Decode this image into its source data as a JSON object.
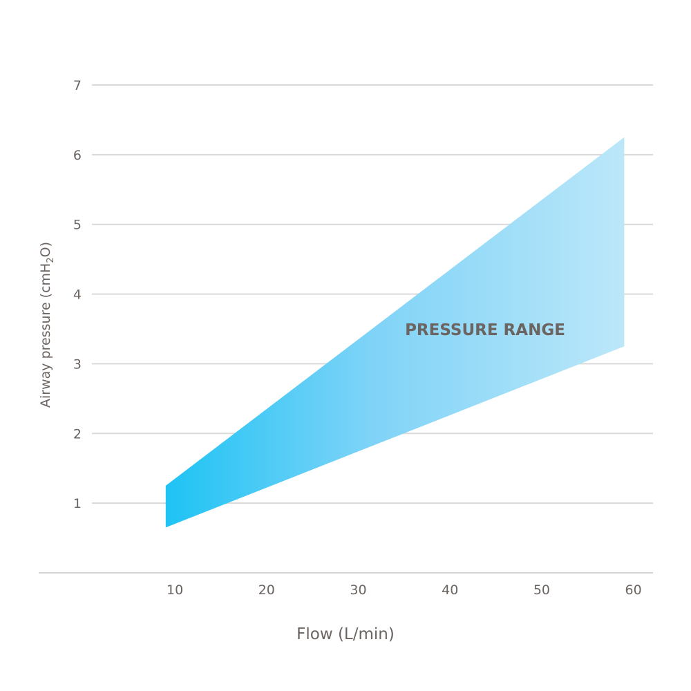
{
  "chart_data": {
    "type": "area",
    "xlabel": "Flow (L/min)",
    "ylabel": {
      "main": "Airway pressure (cmH",
      "subscript": "2",
      "suffix": "O)"
    },
    "x_ticks": [
      10,
      20,
      30,
      40,
      50,
      60
    ],
    "y_ticks": [
      1,
      2,
      3,
      4,
      5,
      6,
      7
    ],
    "xlim": [
      4,
      64
    ],
    "ylim": [
      0,
      7
    ],
    "grid": "horizontal",
    "band": {
      "x": [
        9,
        59
      ],
      "lower": [
        0.65,
        3.25
      ],
      "upper": [
        1.25,
        6.25
      ]
    },
    "annotation": "PRESSURE RANGE",
    "colors": {
      "band_start": "#1ec3f4",
      "band_end": "#bce7f9",
      "grid": "#d9d9d9",
      "text": "#6b6460"
    }
  }
}
